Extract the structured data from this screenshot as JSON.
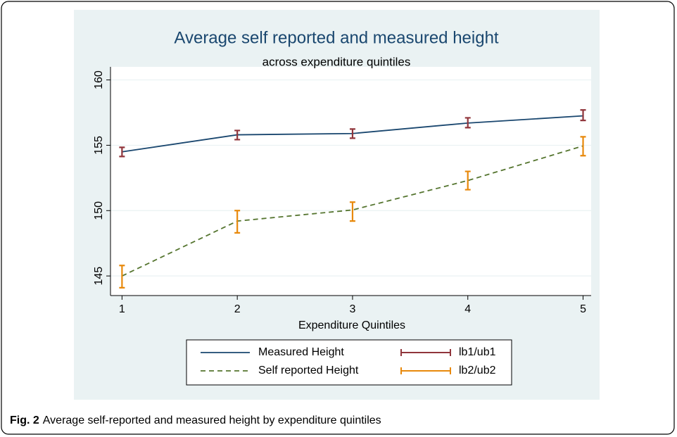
{
  "chart_data": {
    "type": "line",
    "title": "Average self reported and measured height",
    "subtitle": "across expenditure quintiles",
    "x_label": "Expenditure Quintiles",
    "x": [
      1,
      2,
      3,
      4,
      5
    ],
    "xlim": [
      0.9,
      5.07
    ],
    "xticks": [
      1,
      2,
      3,
      4,
      5
    ],
    "ylim": [
      143.5,
      161
    ],
    "yticks": [
      145,
      150,
      155,
      160
    ],
    "grid": true,
    "series": [
      {
        "name": "Measured Height",
        "color": "#1a476f",
        "dash": false,
        "values": [
          154.5,
          155.8,
          155.9,
          156.7,
          157.25
        ]
      },
      {
        "name": "Self reported Height",
        "color": "#55752f",
        "dash": true,
        "values": [
          145.0,
          149.2,
          150.05,
          152.3,
          154.95
        ]
      }
    ],
    "error_bars": [
      {
        "name": "lb1/ub1",
        "color": "#90353b",
        "lower": [
          154.14,
          155.43,
          155.54,
          156.35,
          156.9
        ],
        "upper": [
          154.84,
          156.13,
          156.24,
          157.1,
          157.7
        ]
      },
      {
        "name": "lb2/ub2",
        "color": "#e8890c",
        "lower": [
          144.1,
          148.3,
          149.2,
          151.6,
          154.2
        ],
        "upper": [
          145.8,
          150.0,
          150.65,
          153.0,
          155.65
        ]
      }
    ]
  },
  "caption": {
    "label": "Fig. 2",
    "text": "Average self-reported and measured height by expenditure quintiles"
  }
}
